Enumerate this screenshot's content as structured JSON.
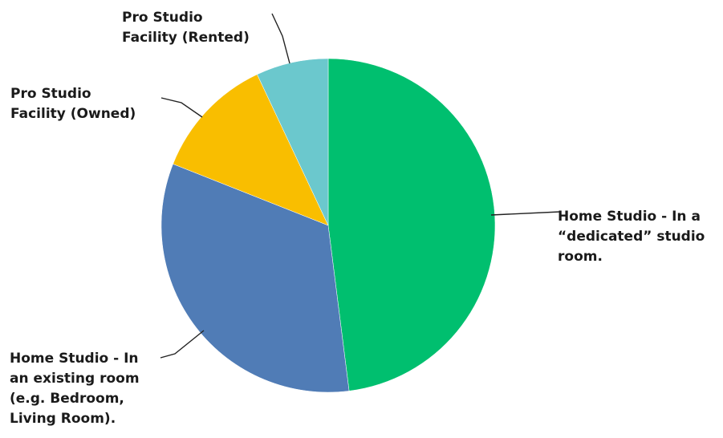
{
  "chart_data": {
    "type": "pie",
    "title": "",
    "start_angle_deg": 0,
    "direction": "clockwise",
    "slices": [
      {
        "label": "Home Studio - In a “dedicated” studio room.",
        "label_lines": [
          "Home Studio - In a",
          "“dedicated” studio",
          "room."
        ],
        "value": 48,
        "color": "#00bf6f"
      },
      {
        "label": "Home Studio - In an existing room (e.g. Bedroom, Living Room).",
        "label_lines": [
          "Home Studio - In",
          "an existing room",
          "(e.g. Bedroom,",
          "Living Room)."
        ],
        "value": 33,
        "color": "#507cb6"
      },
      {
        "label": "Pro Studio Facility (Owned)",
        "label_lines": [
          "Pro Studio",
          "Facility (Owned)"
        ],
        "value": 12,
        "color": "#f9be00"
      },
      {
        "label": "Pro Studio Facility (Rented)",
        "label_lines": [
          "Pro Studio",
          "Facility (Rented)"
        ],
        "value": 7,
        "color": "#6bc8cd"
      }
    ]
  }
}
